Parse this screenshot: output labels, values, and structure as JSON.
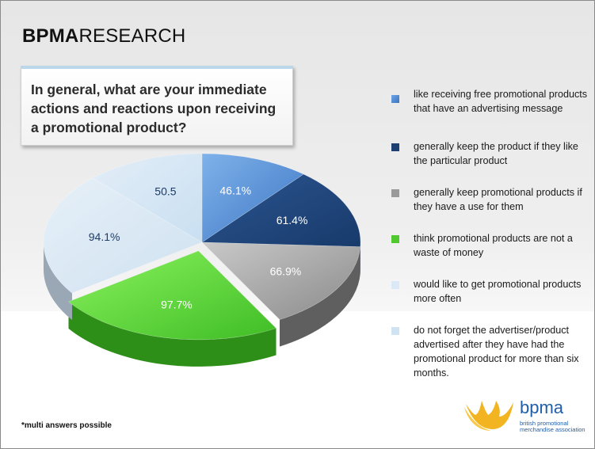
{
  "header": {
    "bold": "BPMA",
    "rest": "RESEARCH"
  },
  "question": "In general, what are your immediate actions and reactions upon receiving a promotional product?",
  "footnote": "*multi answers possible",
  "logo": {
    "word": "bpma",
    "sub": "british promotional merchandise association"
  },
  "colors": {
    "s1": "#4a86d4",
    "s2": "#1d3f72",
    "s3": "#9a9a9a",
    "s4": "#5ed43a",
    "s5": "#d8e8f5",
    "s6": "#d0e4f4",
    "brand": "#1f5fa8",
    "crown": "#f2b420"
  },
  "chart_data": {
    "type": "pie",
    "title": "",
    "categories": [
      "like receiving free promotional products that have an advertising message",
      "generally keep the product if they like the particular product",
      "generally keep promotional products if they have a use for them",
      "think promotional products are not a waste of money",
      "would like to get promotional products more often",
      "do not forget the advertiser/product advertised after they have had the promotional product for more than six months."
    ],
    "values": [
      46.1,
      61.4,
      66.9,
      97.7,
      94.1,
      50.5
    ],
    "data_labels": [
      "46.1%",
      "61.4%",
      "66.9%",
      "97.7%",
      "94.1%",
      "50.5"
    ],
    "legend_position": "right",
    "style": "3d-exploded"
  }
}
